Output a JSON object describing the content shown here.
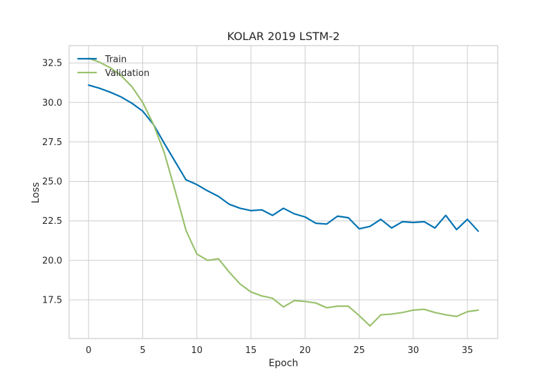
{
  "chart_data": {
    "type": "line",
    "title": "KOLAR 2019 LSTM-2",
    "xlabel": "Epoch",
    "ylabel": "Loss",
    "xlim": [
      -1.8,
      37.8
    ],
    "ylim": [
      15.05,
      33.6
    ],
    "xticks": [
      0,
      5,
      10,
      15,
      20,
      25,
      30,
      35
    ],
    "yticks": [
      17.5,
      20.0,
      22.5,
      25.0,
      27.5,
      30.0,
      32.5
    ],
    "ytick_labels": [
      "17.5",
      "20.0",
      "22.5",
      "25.0",
      "27.5",
      "30.0",
      "32.5"
    ],
    "grid": true,
    "legend_position": "top-left",
    "x": [
      0,
      1,
      2,
      3,
      4,
      5,
      6,
      7,
      8,
      9,
      10,
      11,
      12,
      13,
      14,
      15,
      16,
      17,
      18,
      19,
      20,
      21,
      22,
      23,
      24,
      25,
      26,
      27,
      28,
      29,
      30,
      31,
      32,
      33,
      34,
      35,
      36
    ],
    "series": [
      {
        "name": "Train",
        "color": "#0072b2",
        "values": [
          31.1,
          30.9,
          30.65,
          30.35,
          29.95,
          29.45,
          28.6,
          27.4,
          26.25,
          25.1,
          24.8,
          24.4,
          24.05,
          23.55,
          23.3,
          23.15,
          23.2,
          22.85,
          23.3,
          22.95,
          22.75,
          22.35,
          22.3,
          22.8,
          22.7,
          22.0,
          22.15,
          22.6,
          22.05,
          22.45,
          22.4,
          22.45,
          22.05,
          22.85,
          21.95,
          22.6,
          21.85
        ]
      },
      {
        "name": "Validation",
        "color": "#99c16c",
        "values": [
          32.8,
          32.55,
          32.2,
          31.7,
          31.0,
          30.0,
          28.6,
          26.8,
          24.4,
          21.9,
          20.4,
          20.0,
          20.1,
          19.25,
          18.5,
          18.0,
          17.75,
          17.6,
          17.05,
          17.45,
          17.4,
          17.3,
          17.0,
          17.1,
          17.1,
          16.5,
          15.85,
          16.55,
          16.6,
          16.7,
          16.85,
          16.9,
          16.7,
          16.55,
          16.45,
          16.75,
          16.85
        ]
      }
    ]
  }
}
